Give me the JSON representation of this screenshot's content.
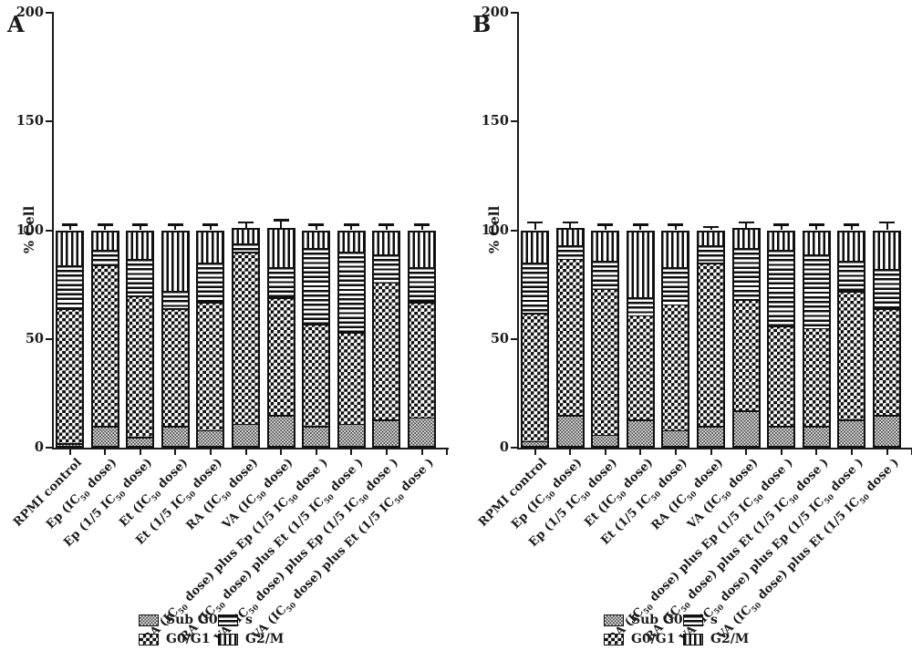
{
  "figure": {
    "background": "#ffffff",
    "ink": "#1a1a1a",
    "panel_letters": [
      "A",
      "B"
    ]
  },
  "legend": {
    "items": [
      {
        "label": "Sub G0",
        "pattern": "fine-checker"
      },
      {
        "label": "G0/G1",
        "pattern": "checker"
      },
      {
        "label": "s",
        "pattern": "h-stripes"
      },
      {
        "label": "G2/M",
        "pattern": "v-stripes"
      }
    ]
  },
  "chart_data": [
    {
      "type": "bar",
      "stacked": true,
      "panel": "A",
      "title": "",
      "xlabel": "",
      "ylabel": "% Cell",
      "ylim": [
        0,
        200
      ],
      "yticks": [
        0,
        50,
        100,
        150,
        200
      ],
      "grid": false,
      "legend_position": "bottom",
      "categories": [
        "RPMI control",
        "Ep (IC₅₀ dose)",
        "Ep (1/5 IC₅₀ dose)",
        "Et (IC₅₀ dose)",
        "Et (1/5 IC₅₀ dose)",
        "RA (IC₅₀ dose)",
        "VA (IC₅₀ dose)",
        "RA (IC₅₀ dose) plus Ep (1/5 IC₅₀ dose )",
        "RA (IC₅₀ dose) plus Et (1/5 IC₅₀ dose )",
        "VA (IC₅₀ dose) plus Ep (1/5 IC₅₀ dose )",
        "VA (IC₅₀ dose) plus Et (1/5 IC₅₀ dose )"
      ],
      "series": [
        {
          "name": "Sub G0",
          "pattern": "fine-checker",
          "values": [
            2,
            10,
            5,
            10,
            8,
            11,
            15,
            10,
            11,
            13,
            14
          ]
        },
        {
          "name": "G0/G1",
          "pattern": "checker",
          "values": [
            62,
            74,
            65,
            54,
            59,
            79,
            54,
            47,
            42,
            63,
            53
          ]
        },
        {
          "name": "s",
          "pattern": "h-stripes",
          "values": [
            20,
            7,
            17,
            8,
            18,
            4,
            14,
            35,
            37,
            13,
            16
          ]
        },
        {
          "name": "G2/M",
          "pattern": "v-stripes",
          "values": [
            16,
            9,
            13,
            28,
            15,
            7,
            18,
            8,
            10,
            11,
            17
          ]
        }
      ],
      "top_error": [
        2,
        2,
        2,
        2,
        2,
        2,
        3,
        2,
        2,
        2,
        2
      ]
    },
    {
      "type": "bar",
      "stacked": true,
      "panel": "B",
      "title": "",
      "xlabel": "",
      "ylabel": "% Cell",
      "ylim": [
        0,
        200
      ],
      "yticks": [
        0,
        50,
        100,
        150,
        200
      ],
      "grid": false,
      "legend_position": "bottom",
      "categories": [
        "RPMI control",
        "Ep (IC₅₀ dose)",
        "Ep (1/5 IC₅₀ dose)",
        "Et (IC₅₀ dose)",
        "Et (1/5 IC₅₀ dose)",
        "RA (IC₅₀ dose)",
        "VA (IC₅₀ dose)",
        "RA (IC₅₀ dose) plus Ep (1/5 IC₅₀ dose )",
        "RA (IC₅₀ dose) plus Et (1/5 IC₅₀ dose )",
        "VA (IC₅₀ dose) plus Ep (1/5 IC₅₀ dose )",
        "VA (IC₅₀ dose) plus Et (1/5 IC₅₀ dose )"
      ],
      "series": [
        {
          "name": "Sub G0",
          "pattern": "fine-checker",
          "values": [
            3,
            15,
            6,
            13,
            8,
            10,
            17,
            10,
            10,
            13,
            15
          ]
        },
        {
          "name": "G0/G1",
          "pattern": "checker",
          "values": [
            59,
            72,
            67,
            48,
            58,
            75,
            51,
            46,
            45,
            59,
            49
          ]
        },
        {
          "name": "s",
          "pattern": "h-stripes",
          "values": [
            23,
            6,
            13,
            8,
            17,
            8,
            24,
            35,
            34,
            14,
            18
          ]
        },
        {
          "name": "G2/M",
          "pattern": "v-stripes",
          "values": [
            15,
            8,
            14,
            31,
            17,
            7,
            9,
            9,
            11,
            14,
            18
          ]
        }
      ],
      "top_error": [
        3,
        2,
        2,
        2,
        2,
        1,
        2,
        2,
        2,
        2,
        3
      ]
    }
  ]
}
